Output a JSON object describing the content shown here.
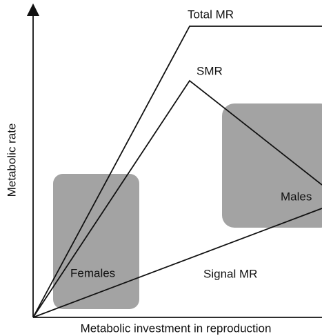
{
  "axes": {
    "y_label": "Metabolic rate",
    "x_label": "Metabolic investment in reproduction"
  },
  "lines": [
    {
      "label": "Total MR"
    },
    {
      "label": "SMR"
    },
    {
      "label": "Signal MR"
    }
  ],
  "groups": [
    {
      "label": "Females"
    },
    {
      "label": "Males"
    }
  ]
}
